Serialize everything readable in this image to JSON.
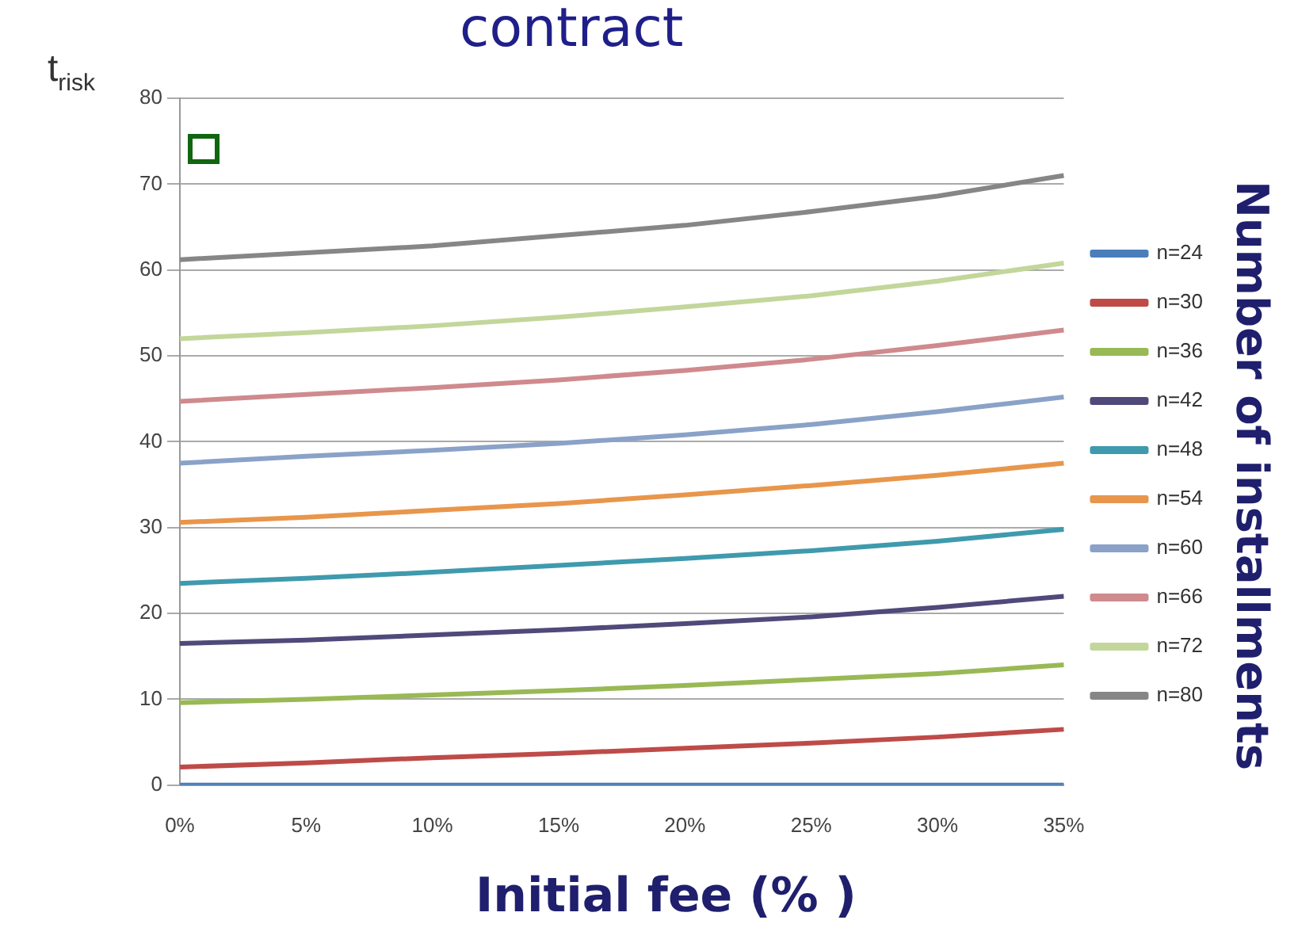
{
  "chart_data": {
    "type": "line",
    "title": "contract",
    "xlabel": "Initial fee (% )",
    "ylabel": "t$_{risk}$",
    "legend_title": "Number of installments",
    "categories": [
      "0%",
      "5%",
      "10%",
      "15%",
      "20%",
      "25%",
      "30%",
      "35%"
    ],
    "series": [
      {
        "name": "n=24",
        "color": "#4a7ebb",
        "values": [
          0,
          0,
          0,
          0,
          0,
          0,
          0,
          0
        ]
      },
      {
        "name": "n=30",
        "color": "#be4b48",
        "values": [
          2.1,
          2.6,
          3.2,
          3.7,
          4.3,
          4.9,
          5.6,
          6.5
        ]
      },
      {
        "name": "n=36",
        "color": "#98b954",
        "values": [
          9.6,
          10,
          10.5,
          11,
          11.6,
          12.3,
          13,
          14
        ]
      },
      {
        "name": "n=42",
        "color": "#4f4a7a",
        "values": [
          16.5,
          16.9,
          17.5,
          18.1,
          18.8,
          19.6,
          20.7,
          22
        ]
      },
      {
        "name": "n=48",
        "color": "#3f9aad",
        "values": [
          23.5,
          24.1,
          24.8,
          25.6,
          26.4,
          27.3,
          28.4,
          29.8
        ]
      },
      {
        "name": "n=54",
        "color": "#e8964c",
        "values": [
          30.6,
          31.2,
          32,
          32.8,
          33.8,
          34.9,
          36.1,
          37.5
        ]
      },
      {
        "name": "n=60",
        "color": "#8aa2c8",
        "values": [
          37.5,
          38.3,
          39,
          39.8,
          40.8,
          42,
          43.5,
          45.2
        ]
      },
      {
        "name": "n=66",
        "color": "#cf8a8e",
        "values": [
          44.7,
          45.5,
          46.3,
          47.2,
          48.3,
          49.6,
          51.2,
          53
        ]
      },
      {
        "name": "n=72",
        "color": "#c3d69b",
        "values": [
          52,
          52.7,
          53.5,
          54.5,
          55.7,
          57,
          58.7,
          60.8
        ]
      },
      {
        "name": "n=80",
        "color": "#868686",
        "values": [
          61.2,
          62,
          62.8,
          64,
          65.2,
          66.8,
          68.6,
          71
        ]
      }
    ],
    "ylim": [
      0,
      80
    ],
    "yticks": [
      0,
      10,
      20,
      30,
      40,
      50,
      60,
      70,
      80
    ],
    "grid": "y",
    "legend": "right",
    "marker": "none",
    "line_style": "solid"
  }
}
